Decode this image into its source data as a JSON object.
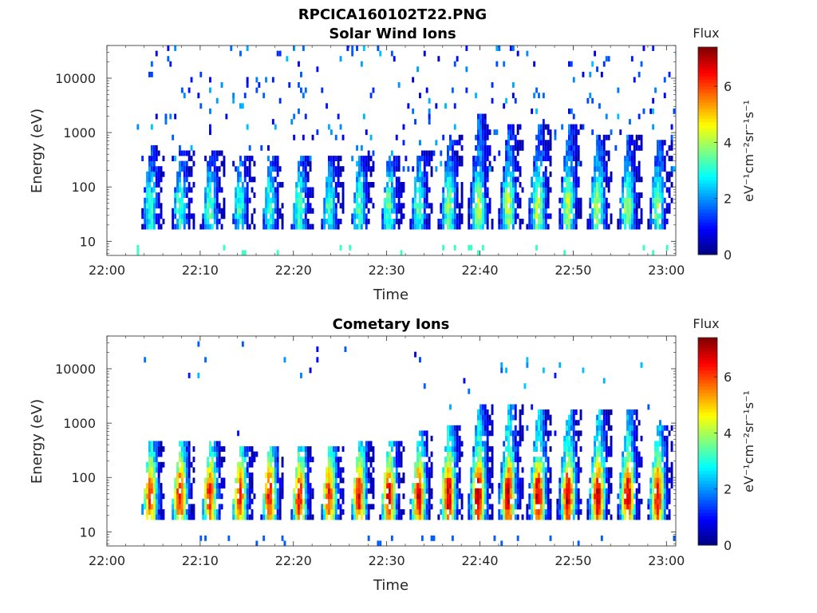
{
  "figure_title": "RPCICA160102T22.PNG",
  "colormap_stops": [
    "#00007f",
    "#0000ff",
    "#007fff",
    "#00ffff",
    "#7fff7f",
    "#ffff00",
    "#ff7f00",
    "#ff0000",
    "#7f0000"
  ],
  "chart_data": [
    {
      "type": "heatmap",
      "title": "Solar Wind Ions",
      "xlabel": "Time",
      "ylabel": "Energy (eV)",
      "x_ticks": [
        "22:00",
        "22:10",
        "22:20",
        "22:30",
        "22:40",
        "22:50",
        "23:00"
      ],
      "y_ticks": [
        "10",
        "100",
        "1000",
        "10000"
      ],
      "yscale": "log",
      "ylim": [
        5.5,
        40000
      ],
      "xlim_minutes": [
        0,
        61
      ],
      "colorbar": {
        "title": "Flux",
        "label": "eV⁻¹cm⁻²sr⁻¹s⁻¹",
        "ticks": [
          "0",
          "2",
          "4",
          "6"
        ],
        "range": [
          0,
          7.4
        ]
      },
      "bursts_start_minute": 3.5,
      "burst_period_minutes": 3.2,
      "burst_count": 18,
      "burst_core_flux": [
        3.2,
        3.4,
        3.3,
        3.2,
        3.3,
        3.4,
        3.3,
        3.4,
        3.5,
        3.5,
        3.8,
        4.2,
        4.2,
        4.3,
        4.2,
        4.1,
        4.0,
        3.8
      ],
      "burst_peak_energy_eV": [
        600,
        500,
        500,
        400,
        350,
        350,
        350,
        350,
        400,
        500,
        900,
        2000,
        1500,
        1500,
        1300,
        1000,
        900,
        700
      ]
    },
    {
      "type": "heatmap",
      "title": "Cometary Ions",
      "xlabel": "Time",
      "ylabel": "Energy (eV)",
      "x_ticks": [
        "22:00",
        "22:10",
        "22:20",
        "22:30",
        "22:40",
        "22:50",
        "23:00"
      ],
      "y_ticks": [
        "10",
        "100",
        "1000",
        "10000"
      ],
      "yscale": "log",
      "ylim": [
        5.5,
        40000
      ],
      "xlim_minutes": [
        0,
        61
      ],
      "colorbar": {
        "title": "Flux",
        "label": "eV⁻¹cm⁻²sr⁻¹s⁻¹",
        "ticks": [
          "0",
          "2",
          "4",
          "6"
        ],
        "range": [
          0,
          7.4
        ]
      },
      "bursts_start_minute": 3.5,
      "burst_period_minutes": 3.2,
      "burst_count": 18,
      "burst_core_flux": [
        6.2,
        6.5,
        6.4,
        6.3,
        6.4,
        6.4,
        6.3,
        6.5,
        6.6,
        6.7,
        6.9,
        7.1,
        7.1,
        7.0,
        7.0,
        7.0,
        6.9,
        6.6
      ],
      "burst_peak_energy_eV": [
        500,
        500,
        450,
        400,
        400,
        400,
        400,
        450,
        500,
        700,
        1000,
        2000,
        2000,
        1800,
        1800,
        1600,
        1600,
        1000
      ]
    }
  ]
}
